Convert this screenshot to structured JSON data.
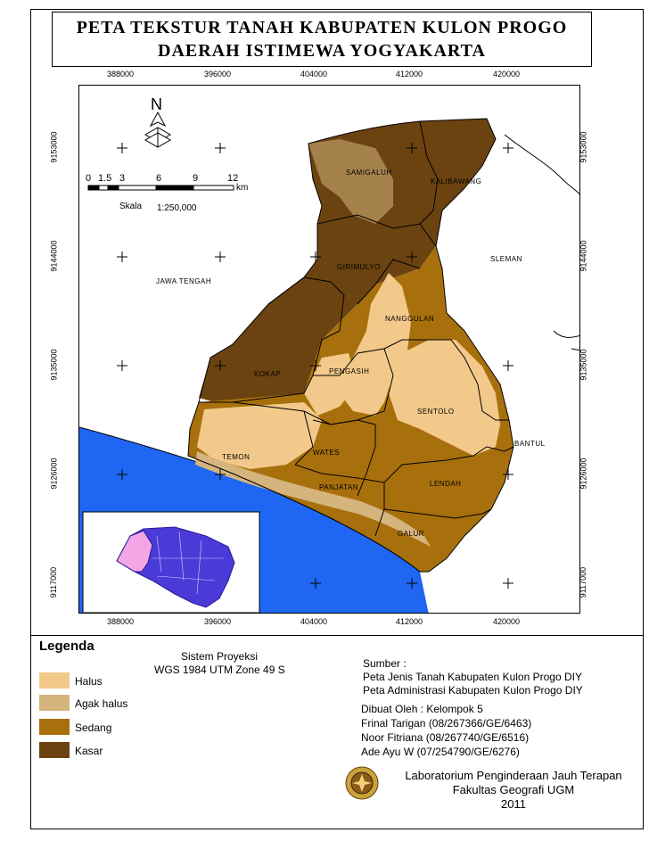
{
  "title": {
    "line1": "PETA TEKSTUR TANAH KABUPATEN KULON PROGO",
    "line2": "DAERAH ISTIMEWA YOGYAKARTA"
  },
  "grid": {
    "x_ticks": [
      "388000",
      "396000",
      "404000",
      "412000",
      "420000"
    ],
    "y_ticks": [
      "9153000",
      "9144000",
      "9135000",
      "9126000",
      "9117000"
    ]
  },
  "north_arrow": {
    "label": "N",
    "icon": "north-arrow-icon"
  },
  "scale_bar": {
    "ticks": [
      "0",
      "1.5",
      "3",
      "6",
      "9",
      "12"
    ],
    "unit": "km",
    "label": "Skala",
    "ratio": "1:250,000"
  },
  "regions": {
    "jawa_tengah": "JAWA TENGAH",
    "sleman": "SLEMAN",
    "bantul": "BANTUL"
  },
  "districts": [
    "SAMIGALUH",
    "KALIBAWANG",
    "GIRIMULYO",
    "NANGGULAN",
    "KOKAP",
    "PENGASIH",
    "SENTOLO",
    "TEMON",
    "WATES",
    "PANJATAN",
    "LENDAH",
    "GALUR"
  ],
  "colors": {
    "halus": "#f3c98b",
    "agak_halus": "#d6b47e",
    "sedang": "#a8700c",
    "kasar": "#6b4310",
    "sea": "#1f66f2",
    "inset_land": "#4a3ad8",
    "inset_highlight": "#f2a6e6"
  },
  "legend": {
    "title": "Legenda",
    "items": [
      {
        "label": "Halus",
        "color": "#f3c98b"
      },
      {
        "label": "Agak halus",
        "color": "#d6b47e"
      },
      {
        "label": "Sedang",
        "color": "#a8700c"
      },
      {
        "label": "Kasar",
        "color": "#6b4310"
      }
    ]
  },
  "projection": {
    "line1": "Sistem Proyeksi",
    "line2": "WGS 1984 UTM Zone 49 S"
  },
  "sources": {
    "title": "Sumber :",
    "lines": [
      "Peta Jenis Tanah Kabupaten Kulon Progo DIY",
      "Peta Administrasi Kabupaten Kulon Progo DIY"
    ]
  },
  "credits": {
    "title": "Dibuat Oleh : Kelompok 5",
    "members": [
      "Frinal Tarigan (08/267366/GE/6463)",
      "Noor Fitriana  (08/267740/GE/6516)",
      "Ade Ayu W    (07/254790/GE/6276)"
    ]
  },
  "institution": {
    "line1": "Laboratorium Penginderaan Jauh Terapan",
    "line2": "Fakultas Geografi UGM",
    "year": "2011",
    "logo": "ugm-seal-icon"
  }
}
